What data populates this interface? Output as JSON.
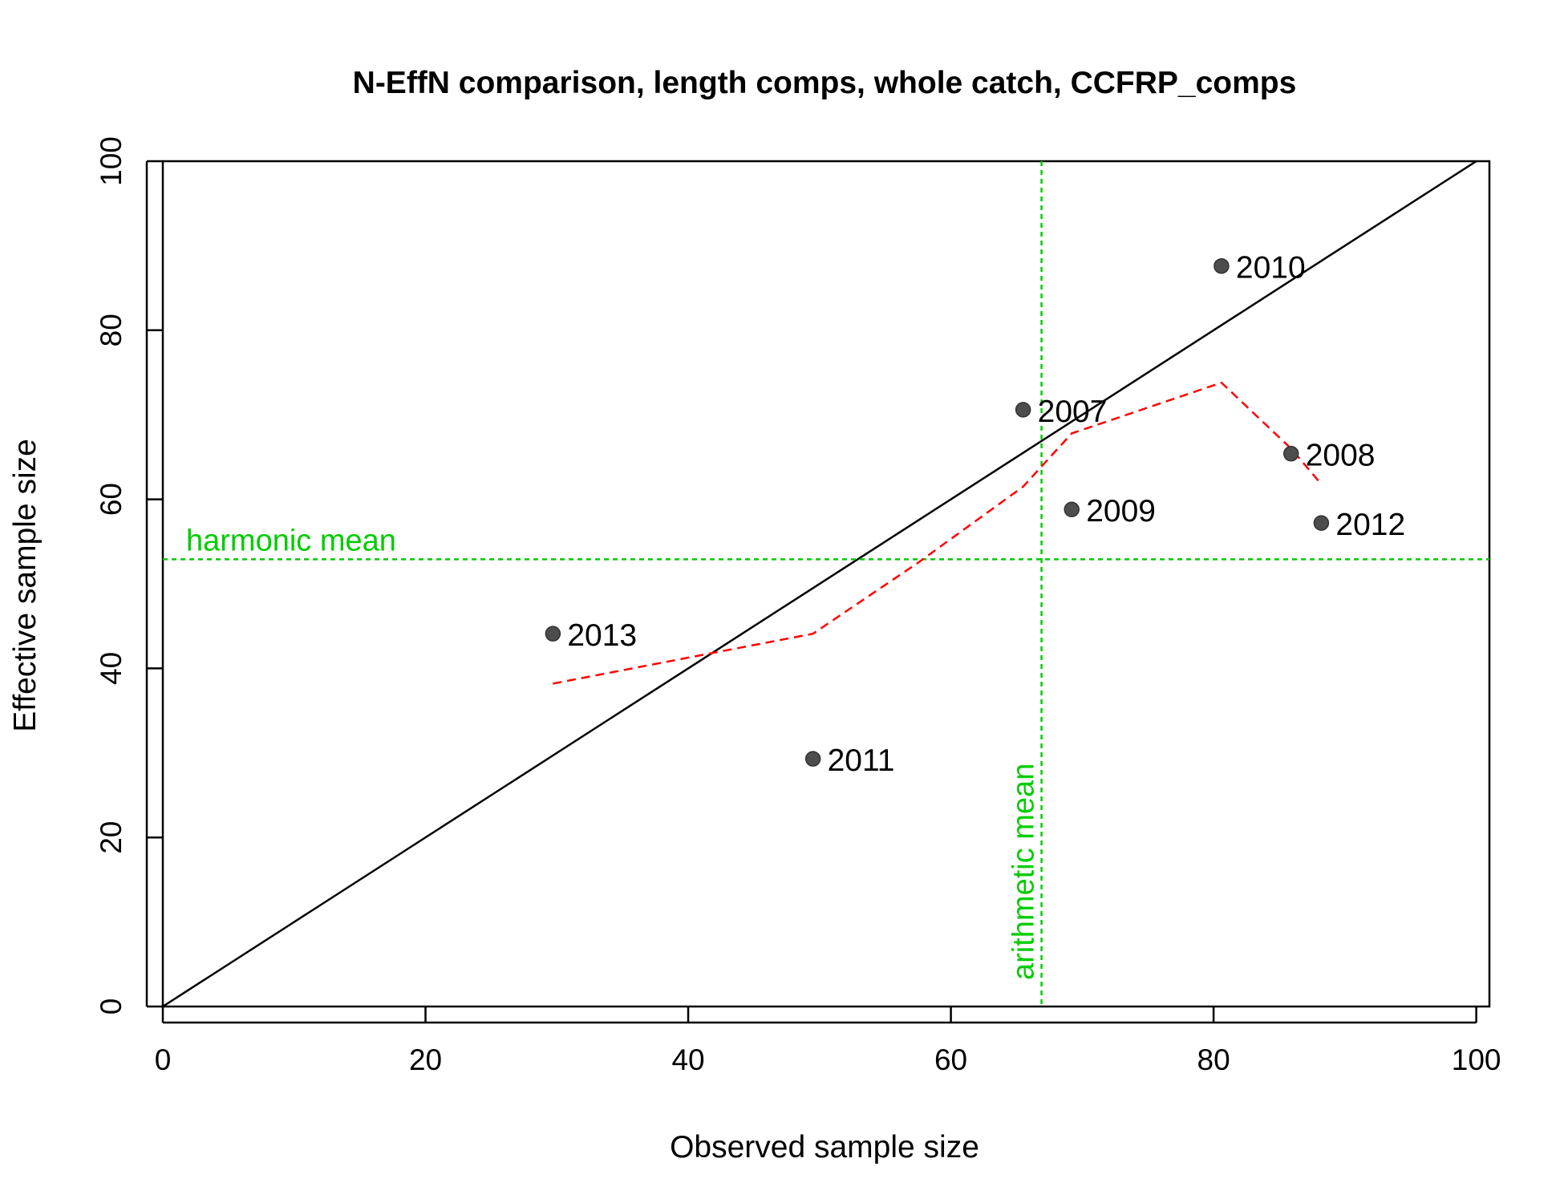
{
  "chart_data": {
    "type": "scatter",
    "title": "N-EffN comparison, length comps, whole catch, CCFRP_comps",
    "xlabel": "Observed sample size",
    "ylabel": "Effective sample size",
    "xlim": [
      0,
      101
    ],
    "ylim": [
      0,
      100
    ],
    "xticks": [
      "0",
      "20",
      "40",
      "60",
      "80",
      "100"
    ],
    "yticks": [
      "0",
      "20",
      "40",
      "60",
      "80",
      "100"
    ],
    "points": [
      {
        "label": "2007",
        "x": 65.5,
        "y": 70.6
      },
      {
        "label": "2008",
        "x": 85.9,
        "y": 65.4
      },
      {
        "label": "2009",
        "x": 69.2,
        "y": 58.8
      },
      {
        "label": "2010",
        "x": 80.6,
        "y": 87.6
      },
      {
        "label": "2011",
        "x": 49.5,
        "y": 29.3
      },
      {
        "label": "2012",
        "x": 88.2,
        "y": 57.2
      },
      {
        "label": "2013",
        "x": 29.7,
        "y": 44.1
      }
    ],
    "one_to_one_line": true,
    "smoother": {
      "color": "#ff0000",
      "x": [
        29.7,
        49.5,
        57.5,
        65.5,
        69.2,
        80.6,
        85.9,
        88.2
      ],
      "y": [
        38.2,
        44.1,
        52.5,
        61.5,
        67.8,
        73.8,
        66.0,
        61.8
      ]
    },
    "reference_lines": {
      "color": "#00cc00",
      "harmonic_mean": {
        "value": 52.9,
        "label": "harmonic mean"
      },
      "arithmetic_mean": {
        "value": 66.9,
        "label": "arithmetic mean"
      }
    },
    "point_color": "#4d4d4d",
    "grid": false,
    "legend": "none"
  }
}
